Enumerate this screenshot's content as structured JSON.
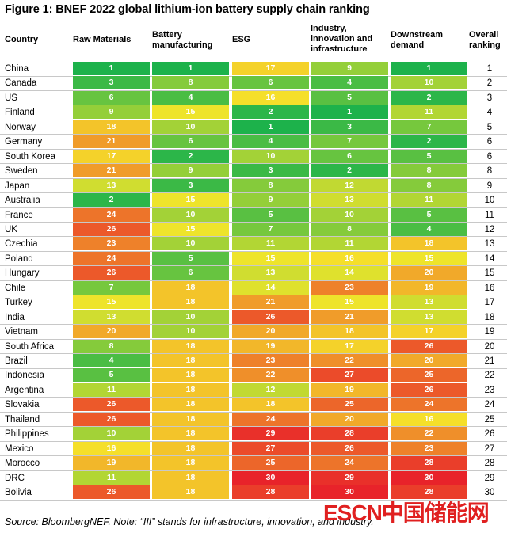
{
  "title": "Figure 1: BNEF 2022 global lithium-ion battery supply chain ranking",
  "source": "Source: BloombergNEF. Note: “III” stands for infrastructure, innovation, and industry.",
  "watermark": "ESCN中国储能网",
  "colors": {
    "low": "#1db24b",
    "mid": "#f5e62a",
    "high": "#e8232a"
  },
  "chart_data": {
    "type": "table",
    "columns": [
      "Country",
      "Raw Materials",
      "Battery manufacturing",
      "ESG",
      "Industry, innovation and infrastructure",
      "Downstream demand",
      "Overall ranking"
    ],
    "rows": [
      {
        "country": "China",
        "ranks": [
          1,
          1,
          17,
          9,
          1
        ],
        "overall": 1
      },
      {
        "country": "Canada",
        "ranks": [
          3,
          8,
          6,
          4,
          10
        ],
        "overall": 2
      },
      {
        "country": "US",
        "ranks": [
          6,
          4,
          16,
          5,
          2
        ],
        "overall": 3
      },
      {
        "country": "Finland",
        "ranks": [
          9,
          15,
          2,
          1,
          11
        ],
        "overall": 4
      },
      {
        "country": "Norway",
        "ranks": [
          18,
          10,
          1,
          3,
          7
        ],
        "overall": 5
      },
      {
        "country": "Germany",
        "ranks": [
          21,
          6,
          4,
          7,
          2
        ],
        "overall": 6
      },
      {
        "country": "South Korea",
        "ranks": [
          17,
          2,
          10,
          6,
          5
        ],
        "overall": 6
      },
      {
        "country": "Sweden",
        "ranks": [
          21,
          9,
          3,
          2,
          8
        ],
        "overall": 8
      },
      {
        "country": "Japan",
        "ranks": [
          13,
          3,
          8,
          12,
          8
        ],
        "overall": 9
      },
      {
        "country": "Australia",
        "ranks": [
          2,
          15,
          9,
          13,
          11
        ],
        "overall": 10
      },
      {
        "country": "France",
        "ranks": [
          24,
          10,
          5,
          10,
          5
        ],
        "overall": 11
      },
      {
        "country": "UK",
        "ranks": [
          26,
          15,
          7,
          8,
          4
        ],
        "overall": 12
      },
      {
        "country": "Czechia",
        "ranks": [
          23,
          10,
          11,
          11,
          18
        ],
        "overall": 13
      },
      {
        "country": "Poland",
        "ranks": [
          24,
          5,
          15,
          16,
          15
        ],
        "overall": 14
      },
      {
        "country": "Hungary",
        "ranks": [
          26,
          6,
          13,
          14,
          20
        ],
        "overall": 15
      },
      {
        "country": "Chile",
        "ranks": [
          7,
          18,
          14,
          23,
          19
        ],
        "overall": 16
      },
      {
        "country": "Turkey",
        "ranks": [
          15,
          18,
          21,
          15,
          13
        ],
        "overall": 17
      },
      {
        "country": "India",
        "ranks": [
          13,
          10,
          26,
          21,
          13
        ],
        "overall": 18
      },
      {
        "country": "Vietnam",
        "ranks": [
          20,
          10,
          20,
          18,
          17
        ],
        "overall": 19
      },
      {
        "country": "South Africa",
        "ranks": [
          8,
          18,
          19,
          17,
          26
        ],
        "overall": 20
      },
      {
        "country": "Brazil",
        "ranks": [
          4,
          18,
          23,
          22,
          20
        ],
        "overall": 21
      },
      {
        "country": "Indonesia",
        "ranks": [
          5,
          18,
          22,
          27,
          25
        ],
        "overall": 22
      },
      {
        "country": "Argentina",
        "ranks": [
          11,
          18,
          12,
          19,
          26
        ],
        "overall": 23
      },
      {
        "country": "Slovakia",
        "ranks": [
          26,
          18,
          18,
          25,
          24
        ],
        "overall": 24
      },
      {
        "country": "Thailand",
        "ranks": [
          26,
          18,
          24,
          20,
          16
        ],
        "overall": 25
      },
      {
        "country": "Philippines",
        "ranks": [
          10,
          18,
          29,
          28,
          22
        ],
        "overall": 26
      },
      {
        "country": "Mexico",
        "ranks": [
          16,
          18,
          27,
          26,
          23
        ],
        "overall": 27
      },
      {
        "country": "Morocco",
        "ranks": [
          19,
          18,
          25,
          24,
          28
        ],
        "overall": 28
      },
      {
        "country": "DRC",
        "ranks": [
          11,
          18,
          30,
          29,
          30
        ],
        "overall": 29
      },
      {
        "country": "Bolivia",
        "ranks": [
          26,
          18,
          28,
          30,
          28
        ],
        "overall": 30
      }
    ]
  }
}
